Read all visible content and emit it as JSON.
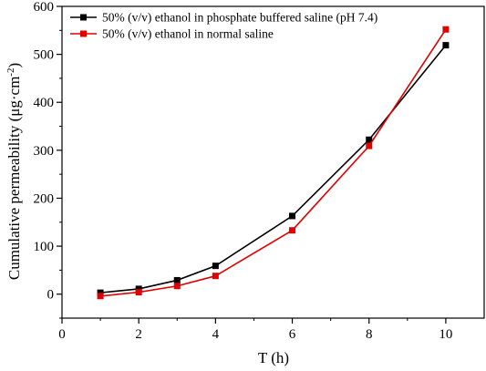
{
  "chart_data": {
    "type": "line",
    "xlabel": "T (h)",
    "ylabel_main": "Cumulative permeability (μg·cm",
    "ylabel_sup": "-2",
    "ylabel_end": ")",
    "xlim": [
      0,
      11
    ],
    "ylim": [
      -50,
      600
    ],
    "x_ticks": [
      0,
      2,
      4,
      6,
      8,
      10
    ],
    "y_ticks": [
      0,
      100,
      200,
      300,
      400,
      500,
      600
    ],
    "grid": false,
    "legend_position": "top-left",
    "series": [
      {
        "name": "50% (v/v) ethanol in phosphate buffered saline (pH 7.4)",
        "color": "#000000",
        "marker": "square",
        "x": [
          1,
          2,
          3,
          4,
          6,
          8,
          10
        ],
        "y": [
          3,
          11,
          29,
          59,
          163,
          322,
          519
        ]
      },
      {
        "name": "50% (v/v) ethanol in normal saline",
        "color": "#e00000",
        "marker": "square",
        "x": [
          1,
          2,
          3,
          4,
          6,
          8,
          10
        ],
        "y": [
          -4,
          4,
          17,
          38,
          133,
          309,
          552
        ]
      }
    ]
  }
}
